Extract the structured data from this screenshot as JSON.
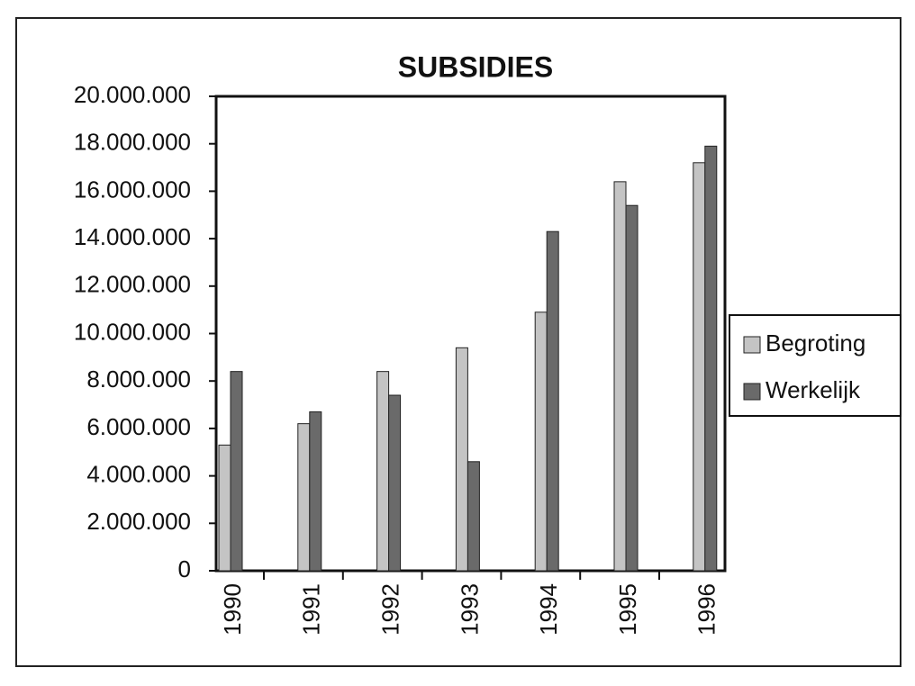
{
  "chart_data": {
    "type": "bar",
    "title": "SUBSIDIES",
    "categories": [
      "1990",
      "1991",
      "1992",
      "1993",
      "1994",
      "1995",
      "1996"
    ],
    "series": [
      {
        "name": "Begroting",
        "color": "#c4c4c4",
        "values": [
          5300000,
          6200000,
          8400000,
          9400000,
          10900000,
          16400000,
          17200000
        ]
      },
      {
        "name": "Werkelijk",
        "color": "#6a6a6a",
        "values": [
          8400000,
          6700000,
          7400000,
          4600000,
          14300000,
          15400000,
          17900000
        ]
      }
    ],
    "ylim": [
      0,
      20000000
    ],
    "yticks": [
      0,
      {
        "value": 2000000,
        "label": "2.000.000"
      },
      {
        "value": 4000000,
        "label": "4.000.000"
      },
      {
        "value": 6000000,
        "label": "6.000.000"
      },
      {
        "value": 8000000,
        "label": "8.000.000"
      },
      {
        "value": 10000000,
        "label": "10.000.000"
      },
      {
        "value": 12000000,
        "label": "12.000.000"
      },
      {
        "value": 14000000,
        "label": "14.000.000"
      },
      {
        "value": 16000000,
        "label": "16.000.000"
      },
      {
        "value": 18000000,
        "label": "18.000.000"
      },
      {
        "value": 20000000,
        "label": "20.000.000"
      }
    ],
    "legend": "right",
    "grid": false
  }
}
